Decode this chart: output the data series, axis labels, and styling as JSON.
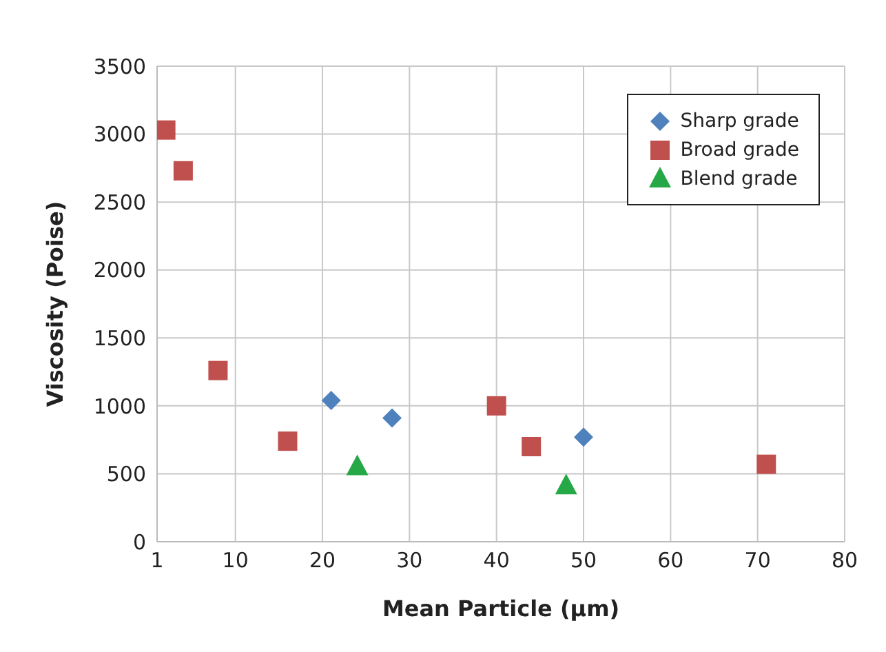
{
  "chart_data": {
    "type": "scatter",
    "xlabel": "Mean Particle (µm)",
    "ylabel": "Viscosity (Poise)",
    "xlim": [
      1,
      80
    ],
    "xticks": [
      1,
      10,
      20,
      30,
      40,
      50,
      60,
      70,
      80
    ],
    "ylim": [
      0,
      3500
    ],
    "yticks": [
      0,
      500,
      1000,
      1500,
      2000,
      2500,
      3000,
      3500
    ],
    "grid": true,
    "legend": "top right",
    "series": [
      {
        "name": "Sharp grade",
        "color": "#4f81bd",
        "marker": "diamond",
        "x": [
          21,
          28,
          50
        ],
        "values": [
          1040,
          910,
          770
        ]
      },
      {
        "name": "Broad grade",
        "color": "#c0504d",
        "marker": "square",
        "x": [
          2,
          4,
          8,
          16,
          40,
          44,
          71
        ],
        "values": [
          3030,
          2730,
          1260,
          740,
          1000,
          700,
          570
        ]
      },
      {
        "name": "Blend grade",
        "color": "#27a847",
        "marker": "triangle",
        "x": [
          24,
          48
        ],
        "values": [
          550,
          410
        ]
      }
    ]
  }
}
